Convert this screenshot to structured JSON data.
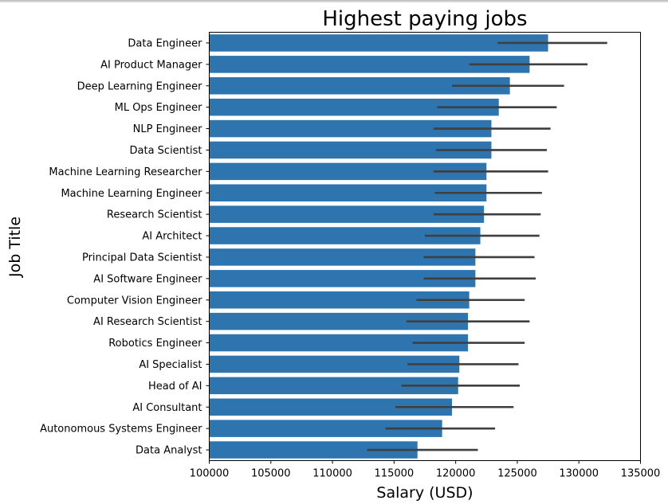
{
  "chart_data": {
    "type": "bar",
    "orientation": "horizontal",
    "title": "Highest paying jobs",
    "xlabel": "Salary (USD)",
    "ylabel": "Job Title",
    "xlim": [
      100000,
      135000
    ],
    "xticks": [
      100000,
      105000,
      110000,
      115000,
      120000,
      125000,
      130000,
      135000
    ],
    "grid": false,
    "bar_color": "#2e75b0",
    "errorbar_color": "#3f3f3f",
    "categories": [
      "Data Engineer",
      "AI Product Manager",
      "Deep Learning Engineer",
      "ML Ops Engineer",
      "NLP Engineer",
      "Data Scientist",
      "Machine Learning Researcher",
      "Machine Learning Engineer",
      "Research Scientist",
      "AI Architect",
      "Principal Data Scientist",
      "AI Software Engineer",
      "Computer Vision Engineer",
      "AI Research Scientist",
      "Robotics Engineer",
      "AI Specialist",
      "Head of AI",
      "AI Consultant",
      "Autonomous Systems Engineer",
      "Data Analyst"
    ],
    "values": [
      127500,
      126000,
      124400,
      123500,
      122900,
      122900,
      122500,
      122500,
      122300,
      122000,
      121600,
      121600,
      121100,
      121000,
      121000,
      120300,
      120200,
      119700,
      118900,
      116900
    ],
    "error_low": [
      123400,
      121100,
      119700,
      118500,
      118200,
      118400,
      118200,
      118300,
      118200,
      117500,
      117400,
      117400,
      116800,
      116000,
      116500,
      116100,
      115600,
      115100,
      114300,
      112800
    ],
    "error_high": [
      132300,
      130700,
      128800,
      128200,
      127700,
      127400,
      127500,
      127000,
      126900,
      126800,
      126400,
      126500,
      125600,
      126000,
      125600,
      125100,
      125200,
      124700,
      123200,
      121800
    ]
  }
}
